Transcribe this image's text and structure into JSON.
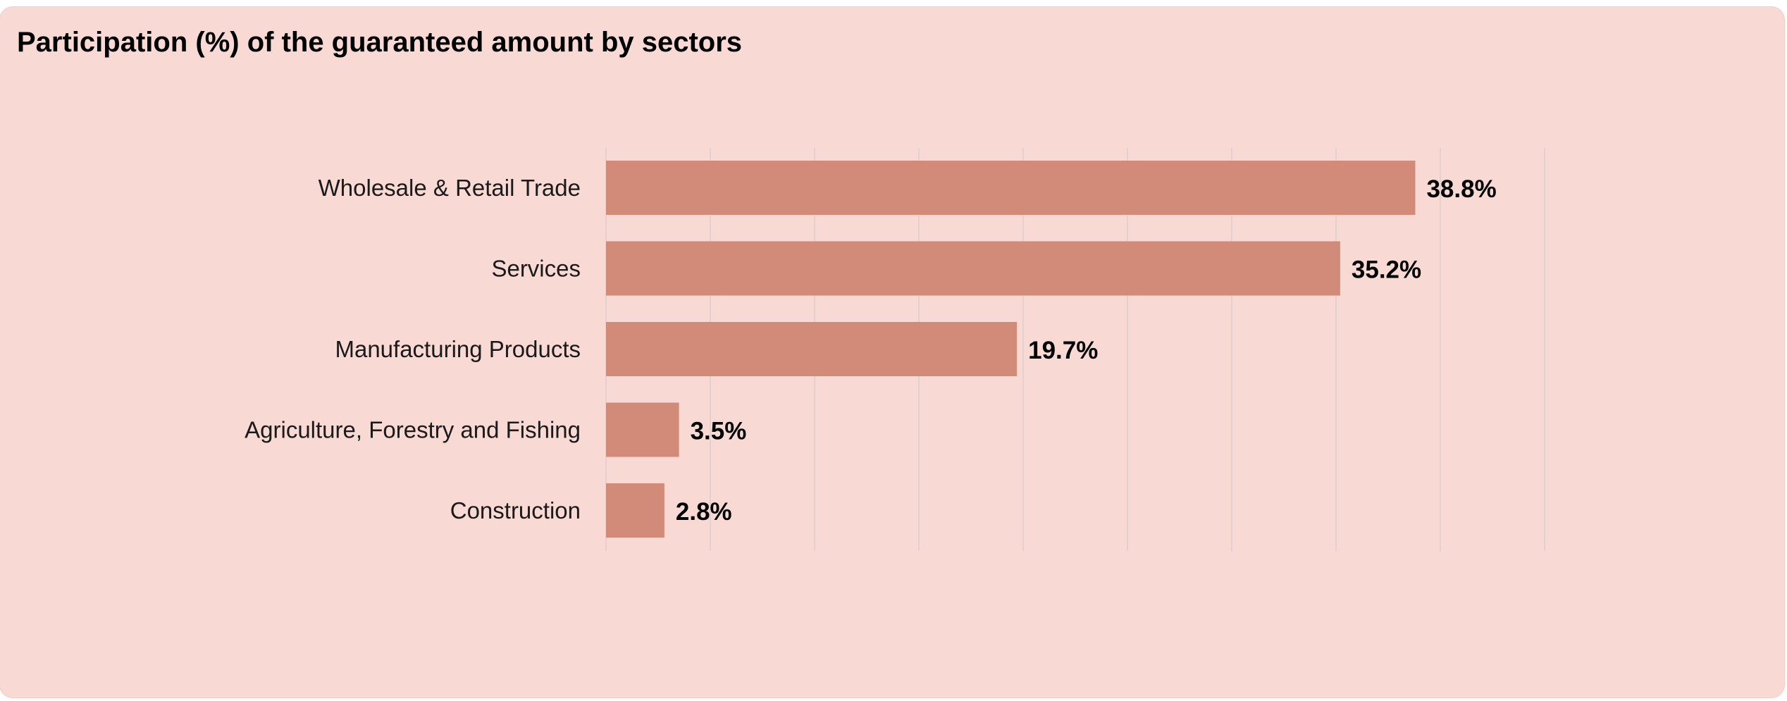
{
  "chart_data": {
    "type": "bar",
    "orientation": "horizontal",
    "title": "Participation (%) of the guaranteed amount by sectors",
    "categories": [
      "Wholesale & Retail Trade",
      "Services",
      "Manufacturing Products",
      "Agriculture, Forestry and Fishing",
      "Construction"
    ],
    "values": [
      38.8,
      35.2,
      19.7,
      3.5,
      2.8
    ],
    "data_labels": [
      "38.8%",
      "35.2%",
      "19.7%",
      "3.5%",
      "2.8%"
    ],
    "xlim": [
      0,
      45
    ],
    "x_gridline_step": 5,
    "grid": true,
    "legend": "none",
    "colors": {
      "bar": "#d38b79",
      "background": "#f8d9d3",
      "gridline": "#d9cfcf"
    }
  }
}
